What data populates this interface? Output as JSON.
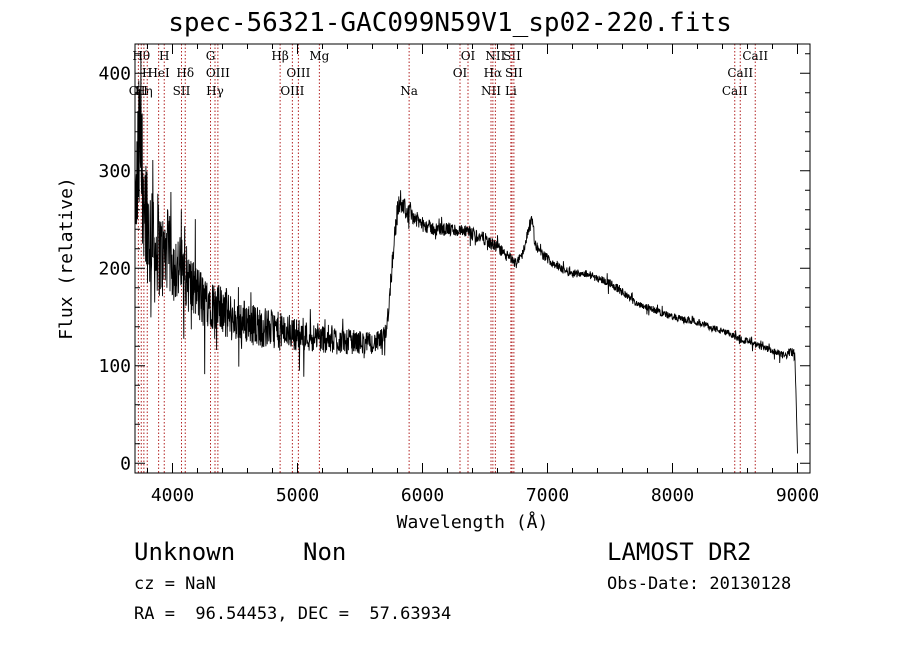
{
  "chart_data": {
    "type": "line",
    "title": "spec-56321-GAC099N59V1_sp02-220.fits",
    "xlabel": "Wavelength (Å)",
    "ylabel": "Flux (relative)",
    "xlim": [
      3700,
      9100
    ],
    "ylim": [
      -10,
      430
    ],
    "xticks": [
      4000,
      5000,
      6000,
      7000,
      8000,
      9000
    ],
    "yticks": [
      0,
      100,
      200,
      300,
      400
    ],
    "xtick_labels": [
      "4000",
      "5000",
      "6000",
      "7000",
      "8000",
      "9000"
    ],
    "ytick_labels": [
      "0",
      "100",
      "200",
      "300",
      "400"
    ],
    "series": [
      {
        "x": [
          3700,
          3720,
          3740,
          3760,
          3780,
          3800,
          3820,
          3840,
          3860,
          3880,
          3900,
          3930,
          3960,
          4000,
          4050,
          4100,
          4150,
          4200,
          4250,
          4300,
          4350,
          4400,
          4450,
          4500,
          4600,
          4700,
          4800,
          4900,
          5000,
          5100,
          5200,
          5300,
          5400,
          5500,
          5600,
          5650,
          5700,
          5730,
          5760,
          5790,
          5820,
          5850,
          5880,
          5900,
          5950,
          6000,
          6100,
          6200,
          6300,
          6400,
          6500,
          6550,
          6600,
          6650,
          6700,
          6750,
          6800,
          6850,
          6880,
          6900,
          6950,
          7000,
          7100,
          7200,
          7300,
          7400,
          7500,
          7600,
          7650,
          7700,
          7800,
          7900,
          8000,
          8100,
          8200,
          8300,
          8400,
          8500,
          8550,
          8600,
          8650,
          8700,
          8800,
          8900,
          8950,
          8980,
          9000
        ],
        "y": [
          250,
          290,
          330,
          300,
          270,
          250,
          230,
          260,
          210,
          230,
          215,
          210,
          220,
          205,
          200,
          195,
          180,
          175,
          165,
          170,
          155,
          160,
          150,
          148,
          145,
          140,
          138,
          135,
          132,
          130,
          128,
          127,
          125,
          124,
          123,
          125,
          130,
          160,
          210,
          250,
          270,
          265,
          255,
          258,
          250,
          245,
          240,
          240,
          238,
          235,
          230,
          225,
          222,
          215,
          210,
          205,
          215,
          240,
          250,
          225,
          215,
          210,
          200,
          195,
          195,
          190,
          185,
          175,
          170,
          165,
          160,
          155,
          150,
          147,
          145,
          140,
          135,
          130,
          128,
          125,
          122,
          120,
          115,
          110,
          115,
          110,
          10
        ],
        "noise_amplitude": [
          0,
          150,
          140,
          130,
          120,
          110,
          100,
          100,
          90,
          90,
          80,
          75,
          70,
          65,
          60,
          55,
          55,
          50,
          50,
          48,
          45,
          45,
          42,
          40,
          38,
          35,
          33,
          30,
          28,
          26,
          25,
          24,
          22,
          20,
          18,
          18,
          18,
          18,
          20,
          22,
          20,
          18,
          15,
          15,
          14,
          13,
          12,
          12,
          12,
          12,
          11,
          10,
          10,
          10,
          10,
          9,
          9,
          10,
          10,
          9,
          8,
          8,
          8,
          7,
          7,
          7,
          7,
          7,
          6,
          6,
          6,
          6,
          6,
          6,
          6,
          6,
          6,
          6,
          6,
          6,
          6,
          6,
          6,
          7,
          8,
          10,
          0
        ]
      }
    ],
    "line_markers": [
      {
        "x": 3727,
        "label": "OII",
        "row": 3
      },
      {
        "x": 3750,
        "label": "Hθ",
        "row": 1
      },
      {
        "x": 3771,
        "label": "Hη",
        "row": 3
      },
      {
        "x": 3798,
        "label": "H",
        "row": 2
      },
      {
        "x": 3889,
        "label": "HeI",
        "row": 2
      },
      {
        "x": 3934,
        "label": "H",
        "row": 1
      },
      {
        "x": 4102,
        "label": "Hδ",
        "row": 2
      },
      {
        "x": 4072,
        "label": "SII",
        "row": 3
      },
      {
        "x": 4304,
        "label": "G",
        "row": 1
      },
      {
        "x": 4340,
        "label": "Hγ",
        "row": 3
      },
      {
        "x": 4363,
        "label": "OIII",
        "row": 2
      },
      {
        "x": 4861,
        "label": "Hβ",
        "row": 1
      },
      {
        "x": 4959,
        "label": "OIII",
        "row": 3
      },
      {
        "x": 5007,
        "label": "OIII",
        "row": 2
      },
      {
        "x": 5175,
        "label": "Mg",
        "row": 1
      },
      {
        "x": 5893,
        "label": "Na",
        "row": 3
      },
      {
        "x": 6300,
        "label": "OI",
        "row": 2
      },
      {
        "x": 6364,
        "label": "OI",
        "row": 1
      },
      {
        "x": 6548,
        "label": "NII",
        "row": 3
      },
      {
        "x": 6563,
        "label": "Hα",
        "row": 2
      },
      {
        "x": 6583,
        "label": "NII",
        "row": 1
      },
      {
        "x": 6707,
        "label": "Li",
        "row": 3
      },
      {
        "x": 6716,
        "label": "SII",
        "row": 1
      },
      {
        "x": 6731,
        "label": "SII",
        "row": 2
      },
      {
        "x": 8498,
        "label": "CaII",
        "row": 3
      },
      {
        "x": 8542,
        "label": "CaII",
        "row": 2
      },
      {
        "x": 8662,
        "label": "CaII",
        "row": 1
      }
    ],
    "marker_line_color": "#b22222",
    "grid": false,
    "legend": "none"
  },
  "footer": {
    "class_label": "Unknown",
    "subclass_label": "Non",
    "survey": "LAMOST DR2",
    "cz_line": "cz = NaN",
    "obs_date": "Obs-Date: 20130128",
    "coords": "RA =  96.54453, DEC =  57.63934"
  }
}
